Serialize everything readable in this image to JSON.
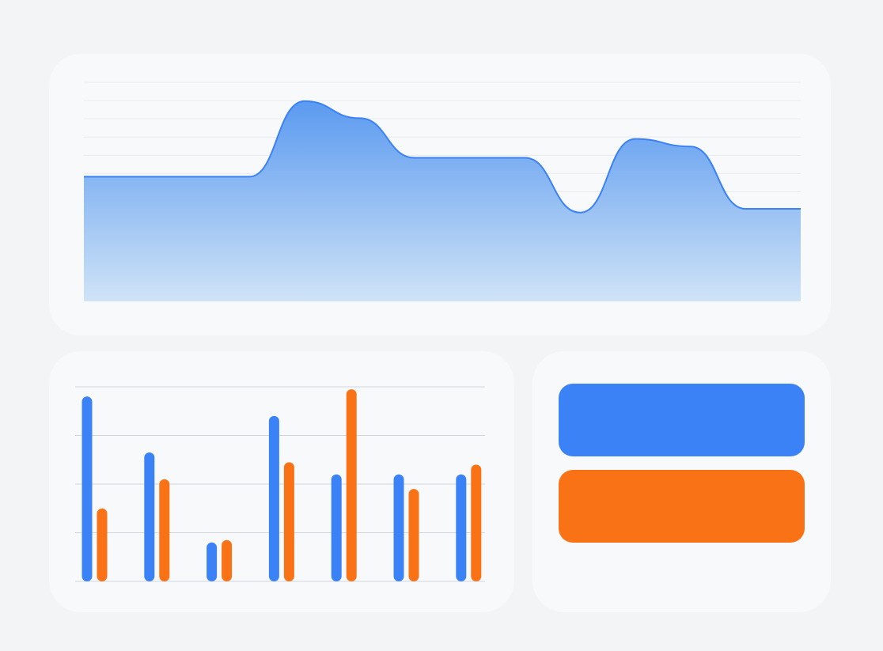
{
  "chart_data": [
    {
      "type": "area",
      "x": [
        1,
        2,
        3,
        4,
        5,
        6,
        7,
        8,
        9,
        10,
        11,
        12,
        13,
        14
      ],
      "series": [
        {
          "values": [
            6.6,
            6.6,
            6.6,
            6.6,
            10.6,
            9.7,
            7.6,
            7.6,
            7.6,
            4.7,
            8.6,
            8.2,
            4.9,
            4.9
          ]
        }
      ],
      "ylim": [
        0,
        11.6
      ],
      "grid": true,
      "colors": {
        "line": "#3b82f6",
        "fill_top": "#5b9af0",
        "fill_bottom": "#cfe3f6",
        "grid": "#e8eaee"
      }
    },
    {
      "type": "bar",
      "categories": [
        "",
        "",
        "",
        "",
        "",
        "",
        ""
      ],
      "series": [
        {
          "values": [
            3.8,
            2.65,
            0.8,
            3.4,
            2.2,
            2.2,
            2.2
          ],
          "color": "#3b82f6"
        },
        {
          "values": [
            1.5,
            2.1,
            0.85,
            2.45,
            3.95,
            1.9,
            2.4
          ],
          "color": "#f97316"
        }
      ],
      "ylim": [
        0,
        4
      ],
      "grid": true,
      "colors": {
        "grid": "#d1d5db"
      }
    }
  ],
  "legend": {
    "items": [
      {
        "label": "",
        "color": "#3b82f6"
      },
      {
        "label": "",
        "color": "#f97316"
      }
    ]
  }
}
